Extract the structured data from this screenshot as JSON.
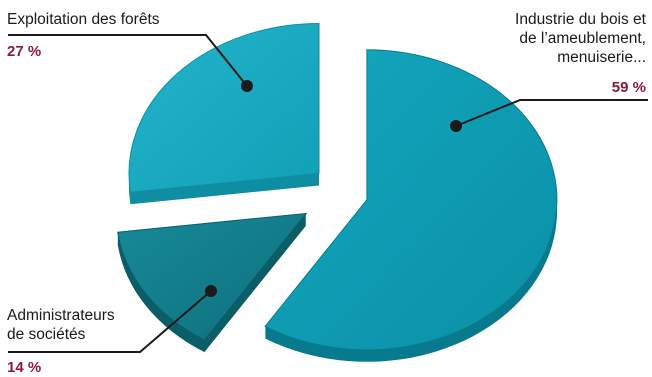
{
  "chart_data": {
    "type": "pie",
    "title": "",
    "slices": [
      {
        "name": "Industrie du bois et de l’ameublement, menuiserie...",
        "label_lines": [
          "Industrie du bois et",
          "de l’ameublement,",
          "menuiserie..."
        ],
        "value": 59,
        "value_label": "59 %"
      },
      {
        "name": "Administrateurs de sociétés",
        "label_lines": [
          "Administrateurs",
          "de sociétés"
        ],
        "value": 14,
        "value_label": "14 %"
      },
      {
        "name": "Exploitation des forêts",
        "label_lines": [
          "Exploitation des forêts"
        ],
        "value": 27,
        "value_label": "27 %"
      }
    ],
    "colors": {
      "top": [
        "#0a9bb3",
        "#127a88",
        "#1aabc3"
      ],
      "side": [
        "#077a8e",
        "#0b5d68",
        "#0f8ea3"
      ],
      "percent_text": "#8b1a3a",
      "leader_line": "#1a1a1a"
    },
    "style": "3d-exploded",
    "legend": "none"
  }
}
